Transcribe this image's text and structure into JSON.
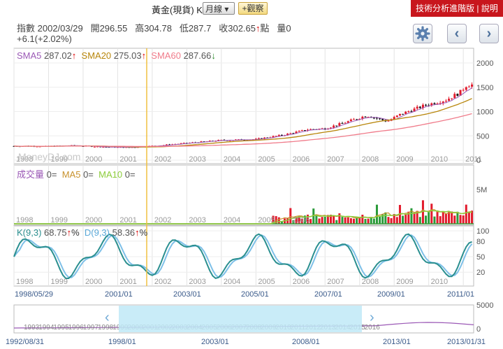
{
  "toolbar": {
    "title": "黃金(現貨) K線圖",
    "period_select": "月線 ▾",
    "watch_button": "+觀察",
    "right_links": "技術分析進階版 | 說明"
  },
  "quote": {
    "label": "指數",
    "date": "2002/03/29",
    "open_label": "開",
    "open": "296.55",
    "high_label": "高",
    "high": "304.78",
    "low_label": "低",
    "low": "287.7",
    "close_label": "收",
    "close": "302.65",
    "unit": "點",
    "volume_label": "量",
    "volume": "0",
    "change": "+6.1(+2.02%)"
  },
  "icons": {
    "settings": "gear-icon",
    "prev": "chevron-left-icon",
    "next": "chevron-right-icon"
  },
  "colors": {
    "up": "#e21a2c",
    "down": "#111111",
    "sma5": "#9b59b6",
    "sma20": "#b8860b",
    "sma60": "#f07b8a",
    "k": "#2a8f8f",
    "d": "#7ec0e8",
    "vol_ma5": "#c8922d",
    "vol_ma10": "#8ccc3a",
    "crosshair": "#f0c040",
    "navigator": "#bfe9f7"
  },
  "chart_data": [
    {
      "type": "candlestick",
      "panel": "price",
      "legend": [
        {
          "name": "SMA5",
          "value": "287.02",
          "arrow": "↑"
        },
        {
          "name": "SMA20",
          "value": "275.03",
          "arrow": "↑"
        },
        {
          "name": "SMA60",
          "value": "287.66",
          "arrow": "↓"
        }
      ],
      "yticks": [
        "2000",
        "1500",
        "1000",
        "500",
        "0"
      ],
      "ylim": [
        0,
        2000
      ],
      "xticks": [
        "1998",
        "1999",
        "2000",
        "2001",
        "2002",
        "2003",
        "2004",
        "2005",
        "2006",
        "2007",
        "2008",
        "2009",
        "2010",
        "2011"
      ],
      "watermark": "MoneyDJ.com",
      "series_keypoints": {
        "x": [
          1998.4,
          1999.0,
          1999.7,
          2000.5,
          2001.3,
          2002.2,
          2003.0,
          2004.0,
          2005.0,
          2005.8,
          2006.5,
          2007.0,
          2007.6,
          2008.2,
          2008.8,
          2009.2,
          2009.9,
          2010.5,
          2010.9,
          2011.1
        ],
        "close": [
          290,
          285,
          300,
          275,
          262,
          302,
          350,
          410,
          430,
          520,
          630,
          650,
          780,
          920,
          800,
          950,
          1130,
          1240,
          1390,
          1550
        ]
      }
    },
    {
      "type": "bar",
      "panel": "volume",
      "legend": [
        {
          "name": "成交量",
          "value": "0="
        },
        {
          "name": "MA5",
          "value": "0="
        },
        {
          "name": "MA10",
          "value": "0="
        }
      ],
      "yticks": [
        "5M"
      ],
      "xticks": [
        "1998",
        "1999",
        "2000",
        "2001",
        "2002",
        "2003",
        "2004",
        "2005",
        "2006"
      ]
    },
    {
      "type": "line",
      "panel": "kd",
      "legend": [
        {
          "name": "K(9,3)",
          "value": "68.75",
          "arrow": "↑",
          "unit": "%"
        },
        {
          "name": "D(9,3)",
          "value": "58.36",
          "arrow": "↑",
          "unit": "%"
        }
      ],
      "yticks": [
        "100",
        "80",
        "50",
        "20"
      ],
      "ylim": [
        0,
        100
      ],
      "xticks": [
        "1998/05/29",
        "2001/01",
        "2003/01",
        "2005/01",
        "2007/01",
        "2009/01",
        "2011/01"
      ]
    },
    {
      "type": "area",
      "panel": "navigator",
      "yticks": [
        "5000",
        "0"
      ],
      "xticks": [
        "1992/08/31",
        "1998/01",
        "2003/01",
        "2008/01",
        "2013/01",
        "2013/01/31"
      ],
      "year_labels": [
        "1993",
        "1994",
        "1995",
        "1996",
        "1997",
        "1998",
        "1999",
        "2000",
        "2001",
        "2002",
        "2003",
        "2004",
        "2005",
        "2006",
        "2007",
        "2008",
        "2009",
        "2010",
        "2011",
        "2012",
        "2013",
        "2014",
        "2015",
        "2016"
      ]
    }
  ]
}
